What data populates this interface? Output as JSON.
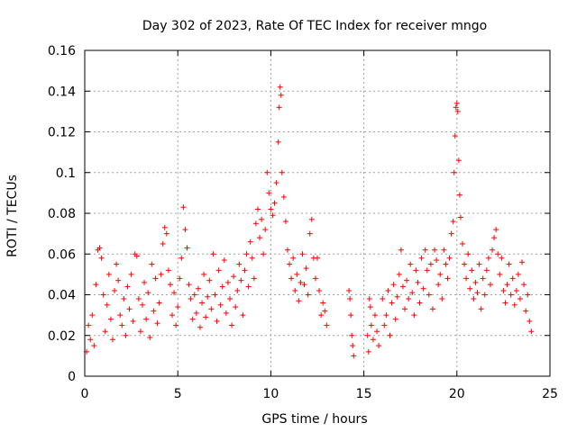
{
  "chart_data": {
    "type": "scatter",
    "title": "Day 302 of 2023, Rate Of TEC Index for receiver mngo",
    "xlabel": "GPS time / hours",
    "ylabel": "ROTI / TECUs",
    "xlim": [
      0,
      25
    ],
    "ylim": [
      0,
      0.16
    ],
    "xticks": [
      0,
      5,
      10,
      15,
      20,
      25
    ],
    "xtick_labels": [
      "0",
      "5",
      "10",
      "15",
      "20",
      "25"
    ],
    "yticks": [
      0,
      0.02,
      0.04,
      0.06,
      0.08,
      0.1,
      0.12,
      0.14,
      0.16
    ],
    "ytick_labels": [
      "0",
      "0.02",
      "0.04",
      "0.06",
      "0.08",
      "0.1",
      "0.12",
      "0.14",
      "0.16"
    ],
    "grid": true,
    "marker": "+",
    "color": "#ff0000",
    "series": [
      {
        "name": "ROTI",
        "points": [
          [
            0.1,
            0.012
          ],
          [
            0.2,
            0.025
          ],
          [
            0.3,
            0.018
          ],
          [
            0.4,
            0.03
          ],
          [
            0.5,
            0.015
          ],
          [
            0.6,
            0.045
          ],
          [
            0.7,
            0.062
          ],
          [
            0.8,
            0.063
          ],
          [
            0.9,
            0.058
          ],
          [
            1.0,
            0.04
          ],
          [
            1.1,
            0.022
          ],
          [
            1.2,
            0.035
          ],
          [
            1.3,
            0.05
          ],
          [
            1.4,
            0.028
          ],
          [
            1.5,
            0.018
          ],
          [
            1.6,
            0.042
          ],
          [
            1.7,
            0.055
          ],
          [
            1.8,
            0.047
          ],
          [
            1.9,
            0.03
          ],
          [
            2.0,
            0.025
          ],
          [
            2.1,
            0.038
          ],
          [
            2.2,
            0.02
          ],
          [
            2.3,
            0.044
          ],
          [
            2.4,
            0.033
          ],
          [
            2.5,
            0.05
          ],
          [
            2.6,
            0.027
          ],
          [
            2.7,
            0.06
          ],
          [
            2.8,
            0.059
          ],
          [
            2.9,
            0.038
          ],
          [
            3.0,
            0.022
          ],
          [
            3.1,
            0.035
          ],
          [
            3.2,
            0.046
          ],
          [
            3.3,
            0.028
          ],
          [
            3.4,
            0.041
          ],
          [
            3.5,
            0.019
          ],
          [
            3.6,
            0.055
          ],
          [
            3.7,
            0.032
          ],
          [
            3.8,
            0.048
          ],
          [
            3.9,
            0.026
          ],
          [
            4.0,
            0.036
          ],
          [
            4.1,
            0.05
          ],
          [
            4.2,
            0.065
          ],
          [
            4.3,
            0.073
          ],
          [
            4.4,
            0.07
          ],
          [
            4.5,
            0.052
          ],
          [
            4.6,
            0.045
          ],
          [
            4.7,
            0.03
          ],
          [
            4.8,
            0.041
          ],
          [
            4.9,
            0.025
          ],
          [
            5.0,
            0.034
          ],
          [
            5.1,
            0.048
          ],
          [
            5.2,
            0.058
          ],
          [
            5.3,
            0.083
          ],
          [
            5.4,
            0.072
          ],
          [
            5.5,
            0.063
          ],
          [
            5.6,
            0.045
          ],
          [
            5.7,
            0.038
          ],
          [
            5.8,
            0.028
          ],
          [
            5.9,
            0.04
          ],
          [
            6.0,
            0.031
          ],
          [
            6.1,
            0.043
          ],
          [
            6.2,
            0.024
          ],
          [
            6.3,
            0.036
          ],
          [
            6.4,
            0.05
          ],
          [
            6.5,
            0.029
          ],
          [
            6.6,
            0.039
          ],
          [
            6.7,
            0.047
          ],
          [
            6.8,
            0.033
          ],
          [
            6.9,
            0.06
          ],
          [
            7.0,
            0.04
          ],
          [
            7.1,
            0.027
          ],
          [
            7.2,
            0.052
          ],
          [
            7.3,
            0.035
          ],
          [
            7.4,
            0.044
          ],
          [
            7.5,
            0.057
          ],
          [
            7.6,
            0.031
          ],
          [
            7.7,
            0.046
          ],
          [
            7.8,
            0.038
          ],
          [
            7.9,
            0.025
          ],
          [
            8.0,
            0.049
          ],
          [
            8.1,
            0.034
          ],
          [
            8.2,
            0.042
          ],
          [
            8.3,
            0.055
          ],
          [
            8.4,
            0.047
          ],
          [
            8.5,
            0.03
          ],
          [
            8.6,
            0.052
          ],
          [
            8.7,
            0.06
          ],
          [
            8.8,
            0.044
          ],
          [
            8.9,
            0.066
          ],
          [
            9.0,
            0.058
          ],
          [
            9.1,
            0.048
          ],
          [
            9.2,
            0.075
          ],
          [
            9.3,
            0.082
          ],
          [
            9.4,
            0.068
          ],
          [
            9.5,
            0.077
          ],
          [
            9.6,
            0.06
          ],
          [
            9.7,
            0.072
          ],
          [
            9.8,
            0.1
          ],
          [
            9.9,
            0.09
          ],
          [
            10.0,
            0.082
          ],
          [
            10.1,
            0.079
          ],
          [
            10.2,
            0.085
          ],
          [
            10.3,
            0.095
          ],
          [
            10.4,
            0.115
          ],
          [
            10.45,
            0.132
          ],
          [
            10.5,
            0.142
          ],
          [
            10.55,
            0.138
          ],
          [
            10.6,
            0.1
          ],
          [
            10.7,
            0.088
          ],
          [
            10.8,
            0.076
          ],
          [
            10.9,
            0.062
          ],
          [
            11.0,
            0.055
          ],
          [
            11.1,
            0.048
          ],
          [
            11.2,
            0.058
          ],
          [
            11.3,
            0.042
          ],
          [
            11.4,
            0.05
          ],
          [
            11.5,
            0.037
          ],
          [
            11.6,
            0.046
          ],
          [
            11.7,
            0.06
          ],
          [
            11.8,
            0.045
          ],
          [
            11.9,
            0.053
          ],
          [
            12.0,
            0.04
          ],
          [
            12.1,
            0.07
          ],
          [
            12.2,
            0.077
          ],
          [
            12.3,
            0.058
          ],
          [
            12.4,
            0.048
          ],
          [
            12.5,
            0.058
          ],
          [
            12.6,
            0.042
          ],
          [
            12.7,
            0.03
          ],
          [
            12.8,
            0.036
          ],
          [
            12.9,
            0.032
          ],
          [
            13.0,
            0.025
          ],
          [
            14.2,
            0.042
          ],
          [
            14.25,
            0.038
          ],
          [
            14.3,
            0.03
          ],
          [
            14.35,
            0.02
          ],
          [
            14.4,
            0.015
          ],
          [
            14.45,
            0.01
          ],
          [
            15.2,
            0.02
          ],
          [
            15.25,
            0.012
          ],
          [
            15.3,
            0.038
          ],
          [
            15.35,
            0.034
          ],
          [
            15.4,
            0.025
          ],
          [
            15.5,
            0.018
          ],
          [
            15.6,
            0.03
          ],
          [
            15.7,
            0.022
          ],
          [
            15.8,
            0.015
          ],
          [
            16.0,
            0.038
          ],
          [
            16.1,
            0.025
          ],
          [
            16.2,
            0.03
          ],
          [
            16.3,
            0.042
          ],
          [
            16.4,
            0.02
          ],
          [
            16.5,
            0.036
          ],
          [
            16.6,
            0.045
          ],
          [
            16.7,
            0.028
          ],
          [
            16.8,
            0.039
          ],
          [
            16.9,
            0.05
          ],
          [
            17.0,
            0.062
          ],
          [
            17.1,
            0.044
          ],
          [
            17.2,
            0.033
          ],
          [
            17.3,
            0.047
          ],
          [
            17.4,
            0.038
          ],
          [
            17.5,
            0.055
          ],
          [
            17.6,
            0.041
          ],
          [
            17.7,
            0.03
          ],
          [
            17.8,
            0.052
          ],
          [
            17.9,
            0.046
          ],
          [
            18.0,
            0.036
          ],
          [
            18.1,
            0.058
          ],
          [
            18.2,
            0.043
          ],
          [
            18.3,
            0.062
          ],
          [
            18.4,
            0.052
          ],
          [
            18.5,
            0.04
          ],
          [
            18.6,
            0.055
          ],
          [
            18.7,
            0.033
          ],
          [
            18.8,
            0.062
          ],
          [
            18.9,
            0.057
          ],
          [
            19.0,
            0.045
          ],
          [
            19.1,
            0.05
          ],
          [
            19.2,
            0.038
          ],
          [
            19.3,
            0.062
          ],
          [
            19.4,
            0.055
          ],
          [
            19.5,
            0.048
          ],
          [
            19.6,
            0.058
          ],
          [
            19.7,
            0.07
          ],
          [
            19.8,
            0.076
          ],
          [
            19.85,
            0.1
          ],
          [
            19.9,
            0.118
          ],
          [
            19.95,
            0.132
          ],
          [
            20.0,
            0.134
          ],
          [
            20.05,
            0.13
          ],
          [
            20.1,
            0.106
          ],
          [
            20.15,
            0.089
          ],
          [
            20.2,
            0.078
          ],
          [
            20.3,
            0.065
          ],
          [
            20.4,
            0.055
          ],
          [
            20.5,
            0.048
          ],
          [
            20.6,
            0.06
          ],
          [
            20.7,
            0.043
          ],
          [
            20.8,
            0.052
          ],
          [
            20.9,
            0.038
          ],
          [
            21.0,
            0.046
          ],
          [
            21.1,
            0.041
          ],
          [
            21.2,
            0.055
          ],
          [
            21.3,
            0.033
          ],
          [
            21.4,
            0.048
          ],
          [
            21.5,
            0.04
          ],
          [
            21.6,
            0.052
          ],
          [
            21.7,
            0.058
          ],
          [
            21.8,
            0.045
          ],
          [
            21.9,
            0.062
          ],
          [
            22.0,
            0.068
          ],
          [
            22.1,
            0.072
          ],
          [
            22.2,
            0.06
          ],
          [
            22.3,
            0.05
          ],
          [
            22.4,
            0.058
          ],
          [
            22.5,
            0.042
          ],
          [
            22.6,
            0.036
          ],
          [
            22.7,
            0.045
          ],
          [
            22.8,
            0.055
          ],
          [
            22.9,
            0.04
          ],
          [
            23.0,
            0.048
          ],
          [
            23.1,
            0.035
          ],
          [
            23.2,
            0.042
          ],
          [
            23.3,
            0.05
          ],
          [
            23.4,
            0.038
          ],
          [
            23.5,
            0.056
          ],
          [
            23.6,
            0.045
          ],
          [
            23.7,
            0.032
          ],
          [
            23.8,
            0.04
          ],
          [
            23.9,
            0.027
          ],
          [
            24.0,
            0.022
          ]
        ]
      }
    ]
  }
}
